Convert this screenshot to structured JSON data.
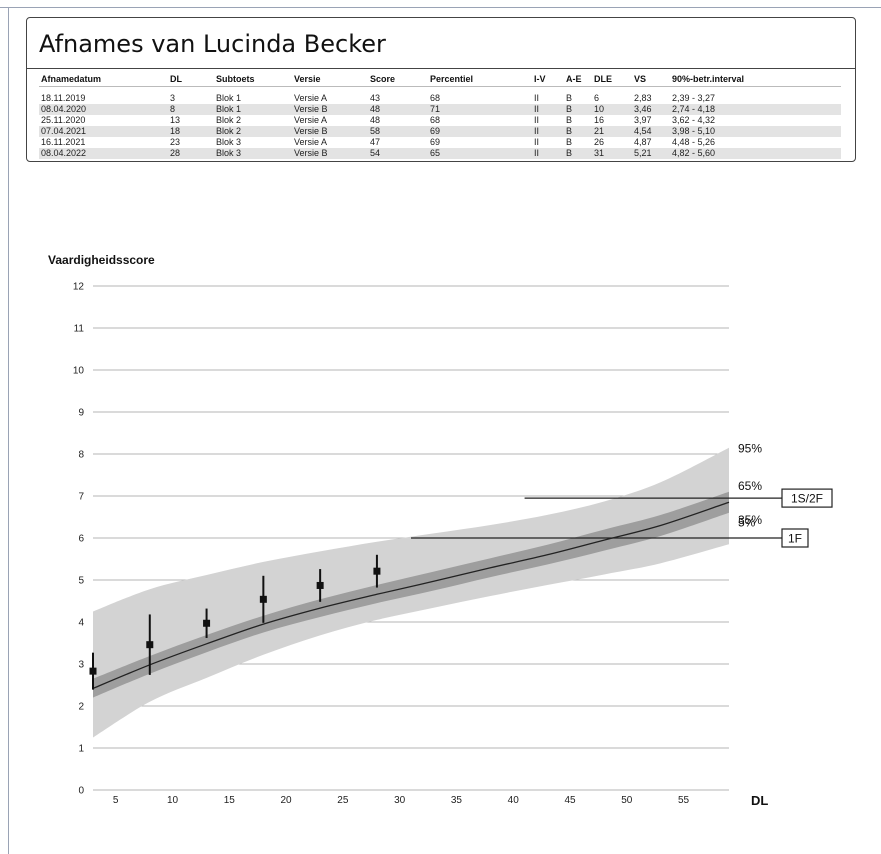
{
  "report": {
    "title": "Afnames van Lucinda Becker",
    "columns": [
      "Afnamedatum",
      "DL",
      "Subtoets",
      "Versie",
      "Score",
      "Percentiel",
      "I-V",
      "A-E",
      "DLE",
      "VS",
      "90%-betr.interval"
    ],
    "rows": [
      [
        "18.11.2019",
        "3",
        "Blok 1",
        "Versie A",
        "43",
        "68",
        "II",
        "B",
        "6",
        "2,83",
        "2,39 - 3,27"
      ],
      [
        "08.04.2020",
        "8",
        "Blok 1",
        "Versie B",
        "48",
        "71",
        "II",
        "B",
        "10",
        "3,46",
        "2,74 - 4,18"
      ],
      [
        "25.11.2020",
        "13",
        "Blok 2",
        "Versie A",
        "48",
        "68",
        "II",
        "B",
        "16",
        "3,97",
        "3,62 - 4,32"
      ],
      [
        "07.04.2021",
        "18",
        "Blok 2",
        "Versie B",
        "58",
        "69",
        "II",
        "B",
        "21",
        "4,54",
        "3,98 - 5,10"
      ],
      [
        "16.11.2021",
        "23",
        "Blok 3",
        "Versie A",
        "47",
        "69",
        "II",
        "B",
        "26",
        "4,87",
        "4,48 - 5,26"
      ],
      [
        "08.04.2022",
        "28",
        "Blok 3",
        "Versie B",
        "54",
        "65",
        "II",
        "B",
        "31",
        "5,21",
        "4,82 - 5,60"
      ]
    ]
  },
  "chart_data": {
    "type": "scatter",
    "title": "",
    "ylabel": "Vaardigheidsscore",
    "xlabel": "DL",
    "xlim": [
      3,
      59
    ],
    "ylim": [
      0,
      12
    ],
    "xticks": [
      5,
      10,
      15,
      20,
      25,
      30,
      35,
      40,
      45,
      50,
      55
    ],
    "yticks": [
      0,
      1,
      2,
      3,
      4,
      5,
      6,
      7,
      8,
      9,
      10,
      11,
      12
    ],
    "grid": "horizontal",
    "points": [
      {
        "x": 3,
        "y": 2.83,
        "low": 2.39,
        "high": 3.27
      },
      {
        "x": 8,
        "y": 3.46,
        "low": 2.74,
        "high": 4.18
      },
      {
        "x": 13,
        "y": 3.97,
        "low": 3.62,
        "high": 4.32
      },
      {
        "x": 18,
        "y": 4.54,
        "low": 3.98,
        "high": 5.1
      },
      {
        "x": 23,
        "y": 4.87,
        "low": 4.48,
        "high": 5.26
      },
      {
        "x": 28,
        "y": 5.21,
        "low": 4.82,
        "high": 5.6
      }
    ],
    "band_x": [
      3,
      8,
      13,
      18,
      23,
      28,
      33,
      38,
      43,
      48,
      53,
      59
    ],
    "band_95": [
      4.25,
      4.78,
      5.12,
      5.43,
      5.68,
      5.91,
      6.11,
      6.31,
      6.55,
      6.87,
      7.33,
      8.15
    ],
    "band_5": [
      1.25,
      2.1,
      2.67,
      3.22,
      3.68,
      4.05,
      4.34,
      4.62,
      4.88,
      5.13,
      5.4,
      5.85
    ],
    "band_65": [
      2.65,
      3.19,
      3.69,
      4.15,
      4.54,
      4.88,
      5.2,
      5.52,
      5.84,
      6.2,
      6.55,
      7.1
    ],
    "band_35": [
      2.2,
      2.77,
      3.28,
      3.75,
      4.12,
      4.45,
      4.75,
      5.07,
      5.37,
      5.7,
      6.05,
      6.6
    ],
    "median": [
      2.42,
      2.98,
      3.48,
      3.95,
      4.33,
      4.66,
      4.97,
      5.29,
      5.6,
      5.95,
      6.3,
      6.85
    ],
    "band_labels": {
      "p95": "95%",
      "p65": "65%",
      "p35": "35%",
      "p5": "5%"
    },
    "reference_lines": [
      {
        "label": "1S/2F",
        "y": 6.95,
        "x_start": 41
      },
      {
        "label": "1F",
        "y": 6.0,
        "x_start": 31
      }
    ],
    "colors": {
      "outer_band": "#d3d3d3",
      "inner_band": "#9e9e9e",
      "median": "#222222",
      "points": "#111111",
      "grid": "#b5b5b5"
    }
  }
}
